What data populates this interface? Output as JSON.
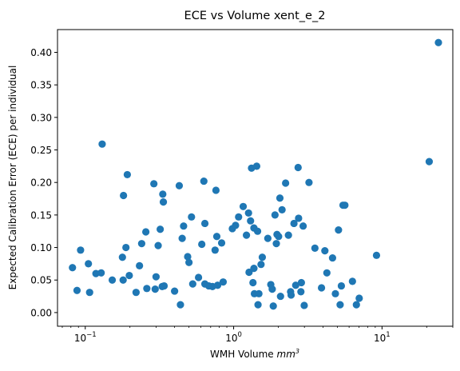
{
  "chart_data": {
    "type": "scatter",
    "title": "ECE vs Volume xent_e_2",
    "xlabel_prefix": "WMH Volume ",
    "xlabel_unit_base": "mm",
    "xlabel_unit_exp": "3",
    "ylabel": "Expected Calibration Error (ECE) per individual",
    "x_scale": "log",
    "xlim": [
      0.065,
      30
    ],
    "ylim": [
      -0.021,
      0.435
    ],
    "x_ticks": [
      {
        "value": 0.1,
        "base": "10",
        "exp": "−1"
      },
      {
        "value": 1,
        "base": "10",
        "exp": "0"
      },
      {
        "value": 10,
        "base": "10",
        "exp": "1"
      }
    ],
    "y_ticks": [
      {
        "value": 0.0,
        "label": "0.00"
      },
      {
        "value": 0.05,
        "label": "0.05"
      },
      {
        "value": 0.1,
        "label": "0.10"
      },
      {
        "value": 0.15,
        "label": "0.15"
      },
      {
        "value": 0.2,
        "label": "0.20"
      },
      {
        "value": 0.25,
        "label": "0.25"
      },
      {
        "value": 0.3,
        "label": "0.30"
      },
      {
        "value": 0.35,
        "label": "0.35"
      },
      {
        "value": 0.4,
        "label": "0.40"
      }
    ],
    "grid": false,
    "marker_color": "#1f77b4",
    "points": [
      [
        0.082,
        0.069
      ],
      [
        0.088,
        0.034
      ],
      [
        0.093,
        0.096
      ],
      [
        0.105,
        0.075
      ],
      [
        0.107,
        0.031
      ],
      [
        0.118,
        0.06
      ],
      [
        0.128,
        0.061
      ],
      [
        0.13,
        0.259
      ],
      [
        0.152,
        0.05
      ],
      [
        0.178,
        0.085
      ],
      [
        0.181,
        0.18
      ],
      [
        0.18,
        0.05
      ],
      [
        0.188,
        0.1
      ],
      [
        0.192,
        0.212
      ],
      [
        0.198,
        0.057
      ],
      [
        0.22,
        0.031
      ],
      [
        0.232,
        0.072
      ],
      [
        0.24,
        0.106
      ],
      [
        0.256,
        0.124
      ],
      [
        0.26,
        0.037
      ],
      [
        0.29,
        0.198
      ],
      [
        0.296,
        0.036
      ],
      [
        0.3,
        0.055
      ],
      [
        0.31,
        0.103
      ],
      [
        0.32,
        0.128
      ],
      [
        0.333,
        0.182
      ],
      [
        0.336,
        0.17
      ],
      [
        0.33,
        0.04
      ],
      [
        0.34,
        0.041
      ],
      [
        0.4,
        0.033
      ],
      [
        0.43,
        0.195
      ],
      [
        0.438,
        0.012
      ],
      [
        0.45,
        0.114
      ],
      [
        0.46,
        0.133
      ],
      [
        0.49,
        0.086
      ],
      [
        0.5,
        0.077
      ],
      [
        0.52,
        0.147
      ],
      [
        0.53,
        0.044
      ],
      [
        0.58,
        0.054
      ],
      [
        0.61,
        0.105
      ],
      [
        0.63,
        0.202
      ],
      [
        0.64,
        0.137
      ],
      [
        0.64,
        0.044
      ],
      [
        0.68,
        0.041
      ],
      [
        0.72,
        0.04
      ],
      [
        0.75,
        0.096
      ],
      [
        0.76,
        0.188
      ],
      [
        0.77,
        0.117
      ],
      [
        0.78,
        0.042
      ],
      [
        0.83,
        0.107
      ],
      [
        0.85,
        0.047
      ],
      [
        0.98,
        0.129
      ],
      [
        1.03,
        0.134
      ],
      [
        1.08,
        0.147
      ],
      [
        1.16,
        0.163
      ],
      [
        1.22,
        0.119
      ],
      [
        1.26,
        0.153
      ],
      [
        1.27,
        0.062
      ],
      [
        1.3,
        0.141
      ],
      [
        1.32,
        0.222
      ],
      [
        1.35,
        0.046
      ],
      [
        1.37,
        0.13
      ],
      [
        1.37,
        0.068
      ],
      [
        1.38,
        0.029
      ],
      [
        1.43,
        0.225
      ],
      [
        1.45,
        0.125
      ],
      [
        1.46,
        0.012
      ],
      [
        1.48,
        0.029
      ],
      [
        1.53,
        0.074
      ],
      [
        1.56,
        0.085
      ],
      [
        1.7,
        0.114
      ],
      [
        1.78,
        0.043
      ],
      [
        1.82,
        0.036
      ],
      [
        1.85,
        0.01
      ],
      [
        1.9,
        0.15
      ],
      [
        1.94,
        0.106
      ],
      [
        1.96,
        0.12
      ],
      [
        2.01,
        0.117
      ],
      [
        2.05,
        0.176
      ],
      [
        2.07,
        0.025
      ],
      [
        2.12,
        0.158
      ],
      [
        2.24,
        0.199
      ],
      [
        2.34,
        0.119
      ],
      [
        2.42,
        0.032
      ],
      [
        2.44,
        0.027
      ],
      [
        2.55,
        0.137
      ],
      [
        2.62,
        0.042
      ],
      [
        2.72,
        0.223
      ],
      [
        2.74,
        0.145
      ],
      [
        2.84,
        0.032
      ],
      [
        2.86,
        0.046
      ],
      [
        2.94,
        0.133
      ],
      [
        2.99,
        0.011
      ],
      [
        3.22,
        0.2
      ],
      [
        3.53,
        0.099
      ],
      [
        3.91,
        0.038
      ],
      [
        4.12,
        0.095
      ],
      [
        4.25,
        0.061
      ],
      [
        4.64,
        0.084
      ],
      [
        4.85,
        0.029
      ],
      [
        5.09,
        0.127
      ],
      [
        5.22,
        0.012
      ],
      [
        5.32,
        0.041
      ],
      [
        5.46,
        0.165
      ],
      [
        5.62,
        0.165
      ],
      [
        6.32,
        0.048
      ],
      [
        6.72,
        0.012
      ],
      [
        7.02,
        0.022
      ],
      [
        9.18,
        0.088
      ],
      [
        20.8,
        0.232
      ],
      [
        24.0,
        0.415
      ]
    ]
  }
}
